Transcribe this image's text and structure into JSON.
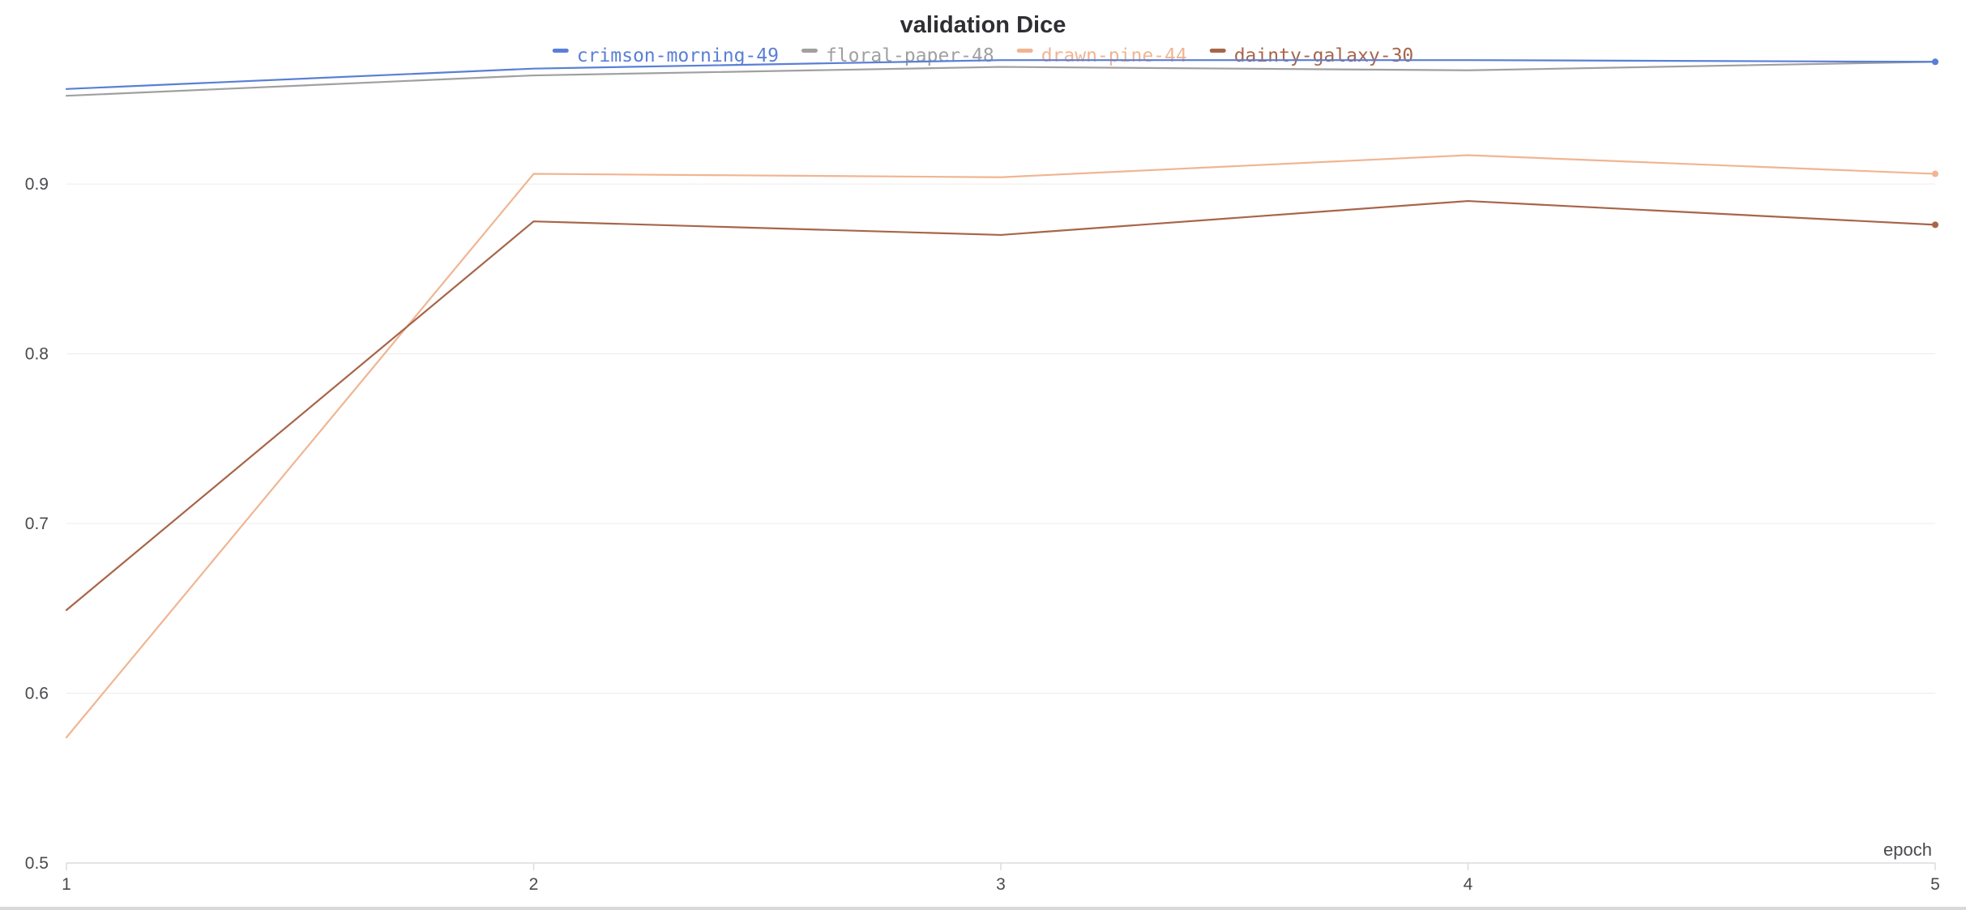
{
  "chart_data": {
    "type": "line",
    "title": "validation Dice",
    "xlabel": "epoch",
    "ylabel": "",
    "x": [
      1,
      2,
      3,
      4,
      5
    ],
    "xlim": [
      1,
      5
    ],
    "ylim": [
      0.5,
      0.975
    ],
    "x_ticks": [
      "1",
      "2",
      "3",
      "4",
      "5"
    ],
    "y_ticks": [
      0.5,
      0.6,
      0.7,
      0.8,
      0.9
    ],
    "y_tick_labels": [
      "0.5",
      "0.6",
      "0.7",
      "0.8",
      "0.9"
    ],
    "grid": true,
    "legend_position": "top-center",
    "series": [
      {
        "name": "crimson-morning-49",
        "color": "#5a7fd6",
        "values": [
          0.956,
          0.968,
          0.973,
          0.973,
          0.972
        ]
      },
      {
        "name": "floral-paper-48",
        "color": "#a0a0a0",
        "values": [
          0.952,
          0.964,
          0.969,
          0.967,
          0.972
        ]
      },
      {
        "name": "drawn-pine-44",
        "color": "#f0b592",
        "values": [
          0.574,
          0.906,
          0.904,
          0.917,
          0.906
        ]
      },
      {
        "name": "dainty-galaxy-30",
        "color": "#a8654a",
        "values": [
          0.649,
          0.878,
          0.87,
          0.89,
          0.876
        ]
      }
    ]
  }
}
